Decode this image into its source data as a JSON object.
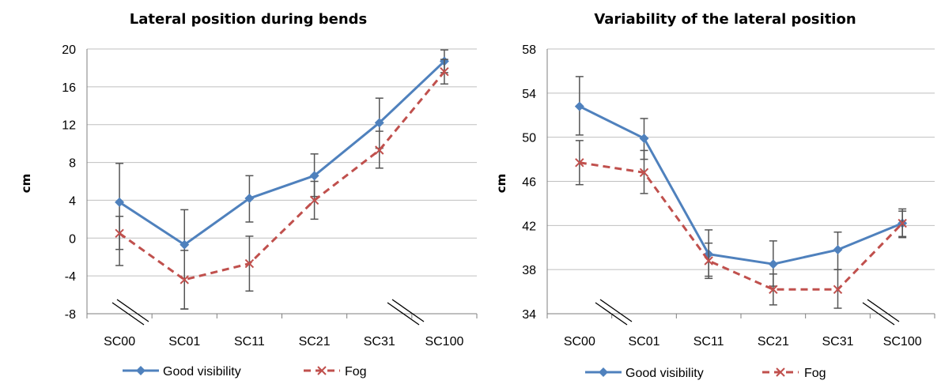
{
  "chart_data": [
    {
      "type": "line",
      "title": "Lateral position during bends",
      "ylabel": "cm",
      "xlabel": "",
      "categories": [
        "SC00",
        "SC01",
        "SC11",
        "SC21",
        "SC31",
        "SC100"
      ],
      "ylim": [
        -8,
        20
      ],
      "yticks": [
        -8,
        -4,
        0,
        4,
        8,
        12,
        16,
        20
      ],
      "grid": true,
      "legend": "bottom",
      "series": [
        {
          "name": "Good visibility",
          "color": "#4f81bd",
          "marker": "diamond",
          "dash": false,
          "values": [
            3.8,
            -0.7,
            4.2,
            6.6,
            12.2,
            18.7
          ],
          "err_low": [
            -2.9,
            -7.5,
            1.7,
            4.4,
            9.5,
            17.5
          ],
          "err_high": [
            7.9,
            3.0,
            6.6,
            8.9,
            14.8,
            19.9
          ]
        },
        {
          "name": "Fog",
          "color": "#c0504d",
          "marker": "x",
          "dash": true,
          "values": [
            0.5,
            -4.4,
            -2.7,
            4.0,
            9.3,
            17.6
          ],
          "err_low": [
            -1.2,
            -7.5,
            -5.6,
            2.0,
            7.4,
            16.3
          ],
          "err_high": [
            2.3,
            -1.3,
            0.2,
            6.0,
            11.3,
            18.9
          ]
        }
      ]
    },
    {
      "type": "line",
      "title": "Variability of the lateral position",
      "ylabel": "cm",
      "xlabel": "",
      "categories": [
        "SC00",
        "SC01",
        "SC11",
        "SC21",
        "SC31",
        "SC100"
      ],
      "ylim": [
        34,
        58
      ],
      "yticks": [
        34,
        38,
        42,
        46,
        50,
        54,
        58
      ],
      "grid": true,
      "legend": "bottom",
      "series": [
        {
          "name": "Good visibility",
          "color": "#4f81bd",
          "marker": "diamond",
          "dash": false,
          "values": [
            52.8,
            49.9,
            39.4,
            38.5,
            39.8,
            42.2
          ],
          "err_low": [
            50.2,
            48.0,
            37.4,
            36.5,
            38.0,
            41.0
          ],
          "err_high": [
            55.5,
            51.7,
            41.6,
            40.6,
            41.4,
            43.5
          ]
        },
        {
          "name": "Fog",
          "color": "#c0504d",
          "marker": "x",
          "dash": true,
          "values": [
            47.7,
            46.8,
            38.8,
            36.2,
            36.2,
            42.2
          ],
          "err_low": [
            45.7,
            44.9,
            37.2,
            34.8,
            34.5,
            40.9
          ],
          "err_high": [
            49.7,
            48.8,
            40.4,
            37.6,
            38.0,
            43.3
          ]
        }
      ]
    }
  ]
}
